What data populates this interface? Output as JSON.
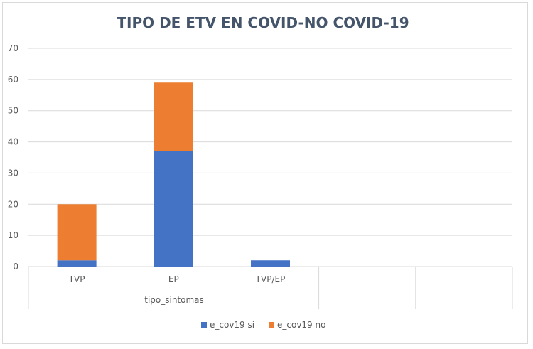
{
  "chart_data": {
    "type": "bar",
    "stacked": true,
    "title": "TIPO DE ETV EN COVID-NO COVID-19",
    "xlabel": "tipo_sintomas",
    "ylabel": "",
    "categories": [
      "TVP",
      "EP",
      "TVP/EP",
      "",
      ""
    ],
    "series": [
      {
        "name": "e_cov19 si",
        "values": [
          2,
          37,
          2,
          0,
          0
        ],
        "color": "#4472c4"
      },
      {
        "name": "e_cov19 no",
        "values": [
          18,
          22,
          0,
          0,
          0
        ],
        "color": "#ed7d31"
      }
    ],
    "ylim": [
      0,
      70
    ],
    "yticks": [
      0,
      10,
      20,
      30,
      40,
      50,
      60,
      70
    ],
    "grid": true,
    "legend": "bottom"
  }
}
